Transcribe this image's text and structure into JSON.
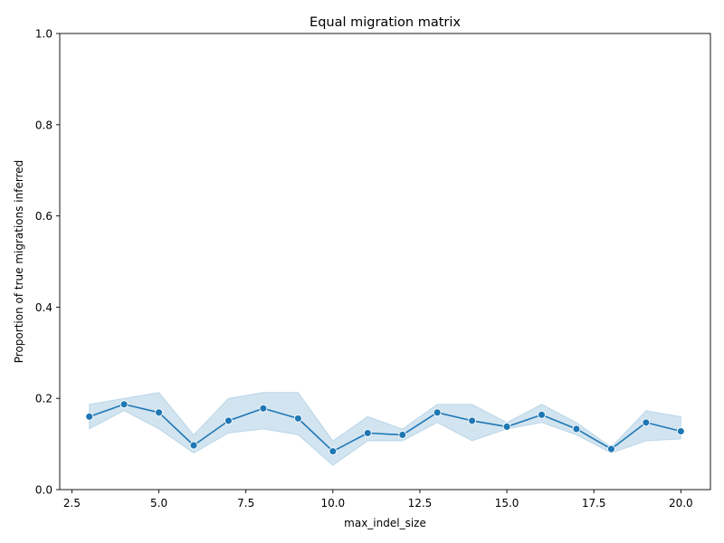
{
  "chart_data": {
    "type": "line",
    "title": "Equal migration matrix",
    "xlabel": "max_indel_size",
    "ylabel": "Proportion of true migrations inferred",
    "xlim": [
      2.15,
      20.85
    ],
    "ylim": [
      0,
      1
    ],
    "xticks": [
      2.5,
      5.0,
      7.5,
      10.0,
      12.5,
      15.0,
      17.5,
      20.0
    ],
    "xtick_labels": [
      "2.5",
      "5.0",
      "7.5",
      "10.0",
      "12.5",
      "15.0",
      "17.5",
      "20.0"
    ],
    "yticks": [
      0,
      0.2,
      0.4,
      0.6,
      0.8,
      1.0
    ],
    "ytick_labels": [
      "0.0",
      "0.2",
      "0.4",
      "0.6",
      "0.8",
      "1.0"
    ],
    "grid": false,
    "line_color": "#1f77b4",
    "band_color": "#1f77b4",
    "x": [
      3,
      4,
      5,
      6,
      7,
      8,
      9,
      10,
      11,
      12,
      13,
      14,
      15,
      16,
      17,
      18,
      19,
      20
    ],
    "y": [
      0.16,
      0.187,
      0.169,
      0.097,
      0.151,
      0.178,
      0.156,
      0.084,
      0.124,
      0.12,
      0.169,
      0.151,
      0.138,
      0.164,
      0.133,
      0.089,
      0.147,
      0.128
    ],
    "ci_lower": [
      0.133,
      0.173,
      0.133,
      0.08,
      0.124,
      0.133,
      0.12,
      0.053,
      0.107,
      0.107,
      0.147,
      0.107,
      0.133,
      0.147,
      0.12,
      0.08,
      0.107,
      0.111
    ],
    "ci_upper": [
      0.187,
      0.2,
      0.213,
      0.12,
      0.2,
      0.213,
      0.213,
      0.107,
      0.16,
      0.133,
      0.187,
      0.187,
      0.147,
      0.187,
      0.147,
      0.093,
      0.173,
      0.16
    ]
  }
}
